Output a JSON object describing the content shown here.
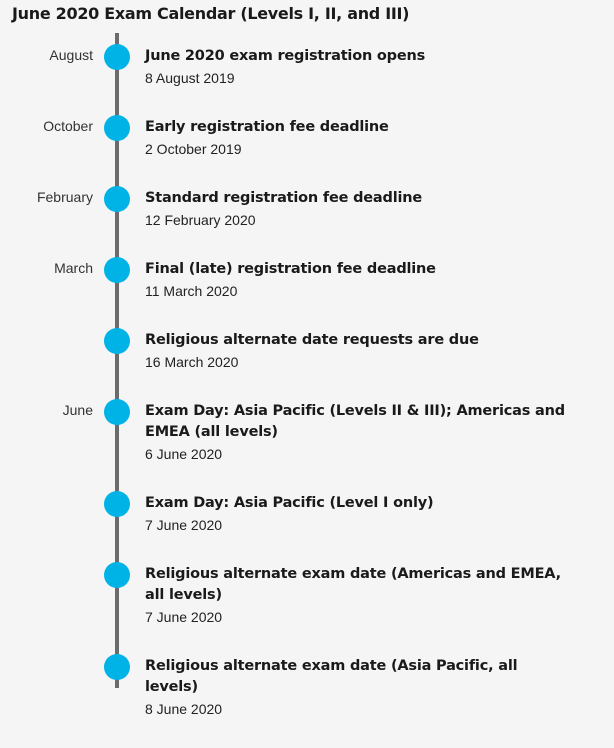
{
  "title": "June 2020 Exam Calendar (Levels I, II, and III)",
  "accent_color": "#00b3e6",
  "events": [
    {
      "month": "August",
      "title": "June 2020 exam registration opens",
      "date": "8 August 2019"
    },
    {
      "month": "October",
      "title": "Early registration fee deadline",
      "date": "2 October 2019"
    },
    {
      "month": "February",
      "title": "Standard registration fee deadline",
      "date": "12 February 2020"
    },
    {
      "month": "March",
      "title": "Final (late) registration fee deadline",
      "date": "11 March 2020"
    },
    {
      "month": "",
      "title": "Religious alternate date requests are due",
      "date": "16 March 2020"
    },
    {
      "month": "June",
      "title": "Exam Day: Asia Pacific (Levels II & III); Americas and EMEA (all levels)",
      "date": "6 June 2020"
    },
    {
      "month": "",
      "title": "Exam Day: Asia Pacific (Level I only)",
      "date": "7 June 2020"
    },
    {
      "month": "",
      "title": "Religious alternate exam date (Americas and EMEA, all levels)",
      "date": "7 June 2020"
    },
    {
      "month": "",
      "title": "Religious alternate exam date (Asia Pacific, all levels)",
      "date": "8 June 2020"
    }
  ]
}
